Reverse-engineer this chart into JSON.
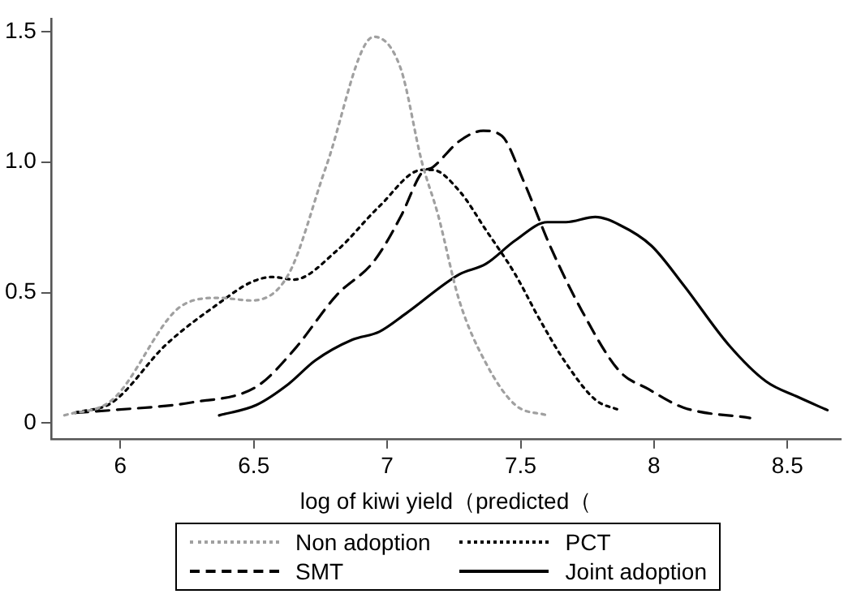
{
  "chart_data": {
    "type": "line",
    "xlabel": "log of kiwi yield（predicted（",
    "xlim": [
      5.74,
      8.7
    ],
    "xticks": [
      6,
      6.5,
      7,
      7.5,
      8,
      8.5
    ],
    "ylim": [
      -0.06,
      1.55
    ],
    "yticks": [
      0,
      0.5,
      {
        "value": 1,
        "label": "1.0"
      },
      1.5
    ],
    "grid": false,
    "legend": "bottom",
    "marker": "none",
    "series": [
      {
        "name": "Non adoption",
        "color": "#a0a0a0",
        "line_style": "dotted",
        "x": [
          5.79,
          5.97,
          6.23,
          6.37,
          6.49,
          6.63,
          6.77,
          6.95,
          7.05,
          7.13,
          7.19,
          7.27,
          7.37,
          7.48,
          7.6
        ],
        "values": [
          0.03,
          0.09,
          0.45,
          0.48,
          0.47,
          0.57,
          0.98,
          1.48,
          1.36,
          1.0,
          0.8,
          0.47,
          0.23,
          0.07,
          0.03
        ]
      },
      {
        "name": "PCT",
        "color": "#000000",
        "line_style": "dotted",
        "x": [
          5.83,
          5.97,
          6.17,
          6.37,
          6.49,
          6.57,
          6.65,
          6.81,
          6.97,
          7.13,
          7.17,
          7.27,
          7.37,
          7.48,
          7.57,
          7.67,
          7.78,
          7.87
        ],
        "values": [
          0.04,
          0.08,
          0.3,
          0.46,
          0.54,
          0.56,
          0.55,
          0.66,
          0.83,
          0.97,
          0.97,
          0.89,
          0.74,
          0.57,
          0.4,
          0.23,
          0.09,
          0.05
        ]
      },
      {
        "name": "SMT",
        "color": "#000000",
        "line_style": "dashed",
        "x": [
          5.83,
          5.97,
          6.27,
          6.51,
          6.65,
          6.81,
          6.95,
          7.05,
          7.13,
          7.17,
          7.27,
          7.36,
          7.43,
          7.51,
          7.61,
          7.73,
          7.87,
          7.98,
          8.11,
          8.36
        ],
        "values": [
          0.04,
          0.05,
          0.08,
          0.14,
          0.28,
          0.49,
          0.62,
          0.79,
          0.96,
          0.98,
          1.08,
          1.12,
          1.1,
          0.93,
          0.68,
          0.43,
          0.2,
          0.13,
          0.06,
          0.02
        ]
      },
      {
        "name": "Joint adoption",
        "color": "#000000",
        "line_style": "solid",
        "x": [
          6.37,
          6.51,
          6.63,
          6.73,
          6.87,
          6.97,
          7.07,
          7.27,
          7.37,
          7.48,
          7.6,
          7.67,
          7.78,
          7.87,
          7.99,
          8.11,
          8.28,
          8.42,
          8.54,
          8.65
        ],
        "values": [
          0.03,
          0.07,
          0.15,
          0.24,
          0.32,
          0.35,
          0.42,
          0.57,
          0.61,
          0.7,
          0.77,
          0.77,
          0.79,
          0.76,
          0.68,
          0.53,
          0.3,
          0.16,
          0.1,
          0.05
        ]
      }
    ]
  }
}
